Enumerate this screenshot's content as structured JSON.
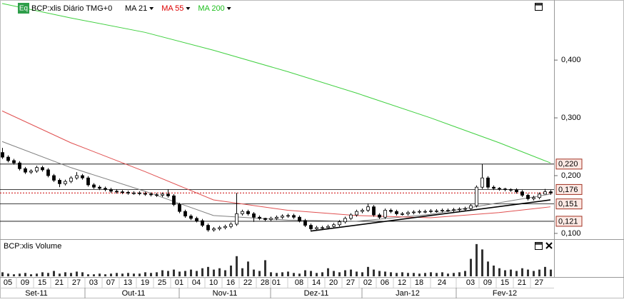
{
  "chart_data": {
    "type": "candlestick",
    "title": "BCP:xlis Diário TMG+0",
    "badge": "Eq",
    "volume_title": "BCP:xlis Volume",
    "ylim": [
      0.09,
      0.504
    ],
    "yticks": [
      {
        "value": 0.1,
        "label": "0,100"
      },
      {
        "value": 0.2,
        "label": "0,200"
      },
      {
        "value": 0.3,
        "label": "0,300"
      },
      {
        "value": 0.4,
        "label": "0,400"
      }
    ],
    "levels": [
      {
        "value": 0.22,
        "label": "0,220"
      },
      {
        "value": 0.176,
        "label": "0,176"
      },
      {
        "value": 0.151,
        "label": "0,151"
      },
      {
        "value": 0.121,
        "label": "0,121"
      }
    ],
    "reference_line": {
      "value": 0.17,
      "color": "#cc0000"
    },
    "trendline": {
      "x": [
        54,
        96
      ],
      "values": [
        0.104,
        0.158
      ]
    },
    "up_color": "#ffffff",
    "down_color": "#000000",
    "open": [
      0.24,
      0.232,
      0.226,
      0.222,
      0.212,
      0.206,
      0.208,
      0.214,
      0.21,
      0.2,
      0.192,
      0.186,
      0.19,
      0.196,
      0.2,
      0.196,
      0.184,
      0.18,
      0.178,
      0.176,
      0.173,
      0.172,
      0.171,
      0.17,
      0.17,
      0.169,
      0.168,
      0.167,
      0.166,
      0.168,
      0.165,
      0.15,
      0.138,
      0.13,
      0.126,
      0.122,
      0.114,
      0.106,
      0.108,
      0.11,
      0.112,
      0.116,
      0.134,
      0.138,
      0.134,
      0.128,
      0.126,
      0.124,
      0.126,
      0.128,
      0.13,
      0.131,
      0.128,
      0.122,
      0.114,
      0.108,
      0.11,
      0.11,
      0.112,
      0.115,
      0.12,
      0.126,
      0.132,
      0.138,
      0.14,
      0.146,
      0.132,
      0.128,
      0.14,
      0.138,
      0.134,
      0.134,
      0.136,
      0.137,
      0.138,
      0.138,
      0.139,
      0.139,
      0.14,
      0.14,
      0.141,
      0.142,
      0.143,
      0.148,
      0.18,
      0.196,
      0.18,
      0.178,
      0.177,
      0.176,
      0.175,
      0.172,
      0.166,
      0.16,
      0.162,
      0.168,
      0.172
    ],
    "high": [
      0.248,
      0.235,
      0.229,
      0.225,
      0.215,
      0.211,
      0.217,
      0.217,
      0.213,
      0.203,
      0.195,
      0.193,
      0.199,
      0.206,
      0.203,
      0.199,
      0.187,
      0.183,
      0.181,
      0.179,
      0.176,
      0.175,
      0.174,
      0.173,
      0.173,
      0.172,
      0.171,
      0.17,
      0.171,
      0.176,
      0.168,
      0.153,
      0.141,
      0.133,
      0.129,
      0.125,
      0.117,
      0.111,
      0.113,
      0.115,
      0.119,
      0.17,
      0.141,
      0.141,
      0.137,
      0.131,
      0.127,
      0.129,
      0.131,
      0.133,
      0.134,
      0.134,
      0.131,
      0.125,
      0.117,
      0.113,
      0.113,
      0.115,
      0.118,
      0.123,
      0.129,
      0.135,
      0.141,
      0.143,
      0.152,
      0.149,
      0.135,
      0.143,
      0.143,
      0.141,
      0.137,
      0.139,
      0.14,
      0.141,
      0.141,
      0.142,
      0.142,
      0.143,
      0.143,
      0.144,
      0.145,
      0.146,
      0.151,
      0.183,
      0.22,
      0.199,
      0.183,
      0.18,
      0.179,
      0.178,
      0.178,
      0.175,
      0.169,
      0.165,
      0.171,
      0.177,
      0.175
    ],
    "low": [
      0.229,
      0.223,
      0.219,
      0.209,
      0.203,
      0.203,
      0.205,
      0.207,
      0.197,
      0.189,
      0.18,
      0.183,
      0.187,
      0.193,
      0.193,
      0.181,
      0.177,
      0.175,
      0.173,
      0.17,
      0.169,
      0.168,
      0.167,
      0.167,
      0.166,
      0.165,
      0.164,
      0.163,
      0.163,
      0.162,
      0.147,
      0.135,
      0.127,
      0.123,
      0.119,
      0.111,
      0.103,
      0.103,
      0.105,
      0.107,
      0.109,
      0.113,
      0.131,
      0.131,
      0.12,
      0.123,
      0.121,
      0.121,
      0.123,
      0.125,
      0.127,
      0.125,
      0.119,
      0.111,
      0.105,
      0.105,
      0.107,
      0.107,
      0.109,
      0.112,
      0.117,
      0.123,
      0.129,
      0.135,
      0.137,
      0.129,
      0.125,
      0.125,
      0.135,
      0.131,
      0.131,
      0.131,
      0.133,
      0.134,
      0.135,
      0.135,
      0.136,
      0.136,
      0.137,
      0.137,
      0.138,
      0.139,
      0.14,
      0.145,
      0.177,
      0.177,
      0.175,
      0.174,
      0.173,
      0.172,
      0.169,
      0.163,
      0.157,
      0.157,
      0.159,
      0.169,
      0.167
    ],
    "close": [
      0.232,
      0.226,
      0.222,
      0.212,
      0.206,
      0.208,
      0.214,
      0.21,
      0.2,
      0.192,
      0.186,
      0.19,
      0.196,
      0.2,
      0.196,
      0.184,
      0.18,
      0.178,
      0.176,
      0.173,
      0.172,
      0.171,
      0.17,
      0.17,
      0.169,
      0.168,
      0.167,
      0.166,
      0.168,
      0.165,
      0.15,
      0.138,
      0.13,
      0.126,
      0.122,
      0.114,
      0.106,
      0.108,
      0.11,
      0.112,
      0.116,
      0.134,
      0.138,
      0.134,
      0.128,
      0.126,
      0.124,
      0.126,
      0.128,
      0.13,
      0.131,
      0.128,
      0.122,
      0.114,
      0.108,
      0.11,
      0.11,
      0.112,
      0.115,
      0.12,
      0.126,
      0.132,
      0.138,
      0.14,
      0.146,
      0.132,
      0.128,
      0.14,
      0.138,
      0.134,
      0.134,
      0.136,
      0.137,
      0.138,
      0.138,
      0.139,
      0.139,
      0.14,
      0.14,
      0.141,
      0.142,
      0.143,
      0.148,
      0.18,
      0.196,
      0.18,
      0.178,
      0.177,
      0.176,
      0.175,
      0.172,
      0.166,
      0.16,
      0.162,
      0.168,
      0.172,
      0.17
    ],
    "volume": [
      6,
      4,
      3,
      4,
      5,
      3,
      4,
      6,
      5,
      8,
      4,
      6,
      5,
      7,
      6,
      3,
      3,
      4,
      3,
      4,
      5,
      4,
      5,
      4,
      4,
      6,
      5,
      6,
      9,
      8,
      10,
      7,
      8,
      10,
      8,
      12,
      14,
      10,
      12,
      9,
      16,
      30,
      12,
      22,
      10,
      8,
      24,
      6,
      5,
      6,
      7,
      5,
      4,
      9,
      8,
      5,
      6,
      12,
      8,
      6,
      9,
      10,
      7,
      6,
      14,
      10,
      8,
      7,
      6,
      5,
      6,
      5,
      5,
      4,
      5,
      6,
      5,
      6,
      4,
      5,
      6,
      8,
      26,
      48,
      40,
      22,
      16,
      12,
      9,
      10,
      8,
      12,
      10,
      8,
      10,
      14,
      10
    ],
    "vlim": [
      0,
      50
    ],
    "volume_color": "#333333",
    "series": [
      {
        "name": "MA 21",
        "color": "#808080",
        "label_color": "#000000",
        "x": [
          0,
          12,
          25,
          37,
          50,
          62,
          75,
          87,
          96
        ],
        "values": [
          0.259,
          0.214,
          0.173,
          0.131,
          0.123,
          0.121,
          0.133,
          0.153,
          0.168
        ]
      },
      {
        "name": "MA 55",
        "color": "#e05050",
        "label_color": "#dd0000",
        "x": [
          0,
          12,
          25,
          37,
          50,
          62,
          75,
          87,
          96
        ],
        "values": [
          0.312,
          0.257,
          0.207,
          0.158,
          0.14,
          0.131,
          0.127,
          0.136,
          0.146
        ]
      },
      {
        "name": "MA 200",
        "color": "#40d040",
        "label_color": "#20c020",
        "x": [
          0,
          12,
          25,
          37,
          50,
          62,
          75,
          87,
          96
        ],
        "values": [
          0.498,
          0.473,
          0.448,
          0.417,
          0.38,
          0.343,
          0.3,
          0.257,
          0.222
        ]
      }
    ],
    "xticks": [
      {
        "value": 1,
        "label": "05"
      },
      {
        "value": 4,
        "label": "09"
      },
      {
        "value": 7,
        "label": "15"
      },
      {
        "value": 10,
        "label": "21"
      },
      {
        "value": 13,
        "label": "27"
      },
      {
        "value": 16,
        "label": "03"
      },
      {
        "value": 19,
        "label": "07"
      },
      {
        "value": 22,
        "label": "13"
      },
      {
        "value": 25,
        "label": "19"
      },
      {
        "value": 28,
        "label": "25"
      },
      {
        "value": 31,
        "label": "01"
      },
      {
        "value": 34,
        "label": "04"
      },
      {
        "value": 37,
        "label": "10"
      },
      {
        "value": 40,
        "label": "16"
      },
      {
        "value": 43,
        "label": "22"
      },
      {
        "value": 46,
        "label": "28"
      },
      {
        "value": 48,
        "label": "01"
      },
      {
        "value": 52,
        "label": "08"
      },
      {
        "value": 55,
        "label": "14"
      },
      {
        "value": 58,
        "label": "20"
      },
      {
        "value": 61,
        "label": "27"
      },
      {
        "value": 64,
        "label": "02"
      },
      {
        "value": 67,
        "label": "06"
      },
      {
        "value": 70,
        "label": "12"
      },
      {
        "value": 73,
        "label": "18"
      },
      {
        "value": 77,
        "label": "24"
      },
      {
        "value": 82,
        "label": "03"
      },
      {
        "value": 85,
        "label": "09"
      },
      {
        "value": 88,
        "label": "15"
      },
      {
        "value": 91,
        "label": "21"
      },
      {
        "value": 94,
        "label": "27"
      }
    ],
    "months": [
      {
        "value": 6,
        "label": "Set-11"
      },
      {
        "value": 23,
        "label": "Out-11"
      },
      {
        "value": 39,
        "label": "Nov-11"
      },
      {
        "value": 55,
        "label": "Dez-11"
      },
      {
        "value": 71,
        "label": "Jan-12"
      },
      {
        "value": 88,
        "label": "Fev-12"
      }
    ]
  }
}
